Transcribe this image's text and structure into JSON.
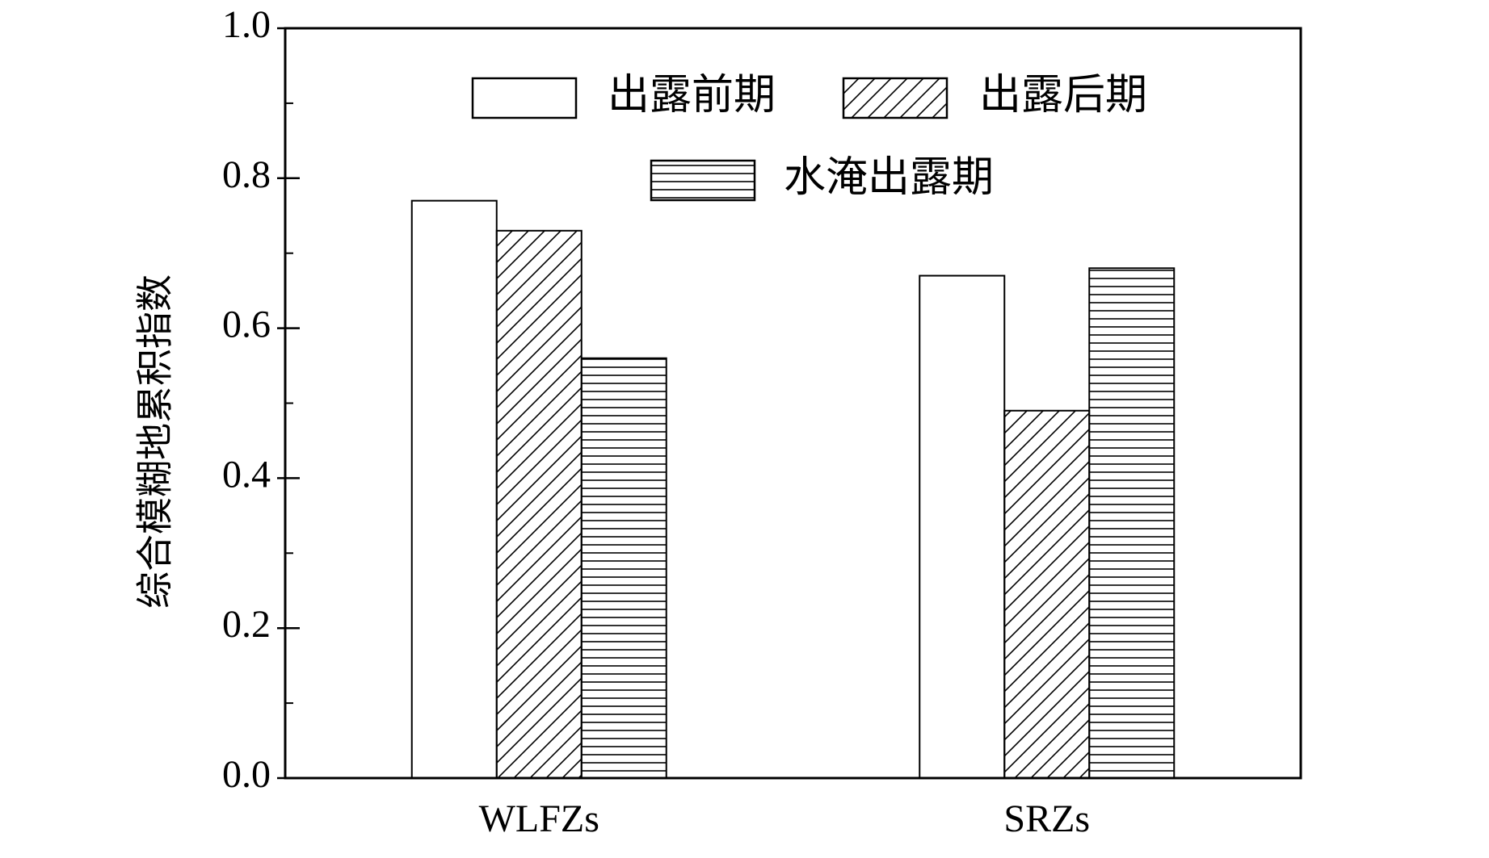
{
  "chart_data": {
    "type": "bar",
    "ylabel": "综合模糊地累积指数",
    "categories": [
      "WLFZs",
      "SRZs"
    ],
    "series": [
      {
        "name": "出露前期",
        "color": "#ffffff",
        "hatch": "none",
        "values": [
          0.77,
          0.67
        ]
      },
      {
        "name": "出露后期",
        "color": "#ffffff",
        "hatch": "diagonal",
        "values": [
          0.73,
          0.49
        ]
      },
      {
        "name": "水淹出露期",
        "color": "#ffffff",
        "hatch": "horizontal",
        "values": [
          0.56,
          0.68
        ]
      }
    ],
    "ylim": [
      0,
      1
    ],
    "yticks": [
      {
        "value": 0,
        "label": "0.0"
      },
      0.2,
      0.4,
      0.6,
      0.8,
      {
        "value": 1,
        "label": "1.0"
      }
    ],
    "grid": false
  }
}
